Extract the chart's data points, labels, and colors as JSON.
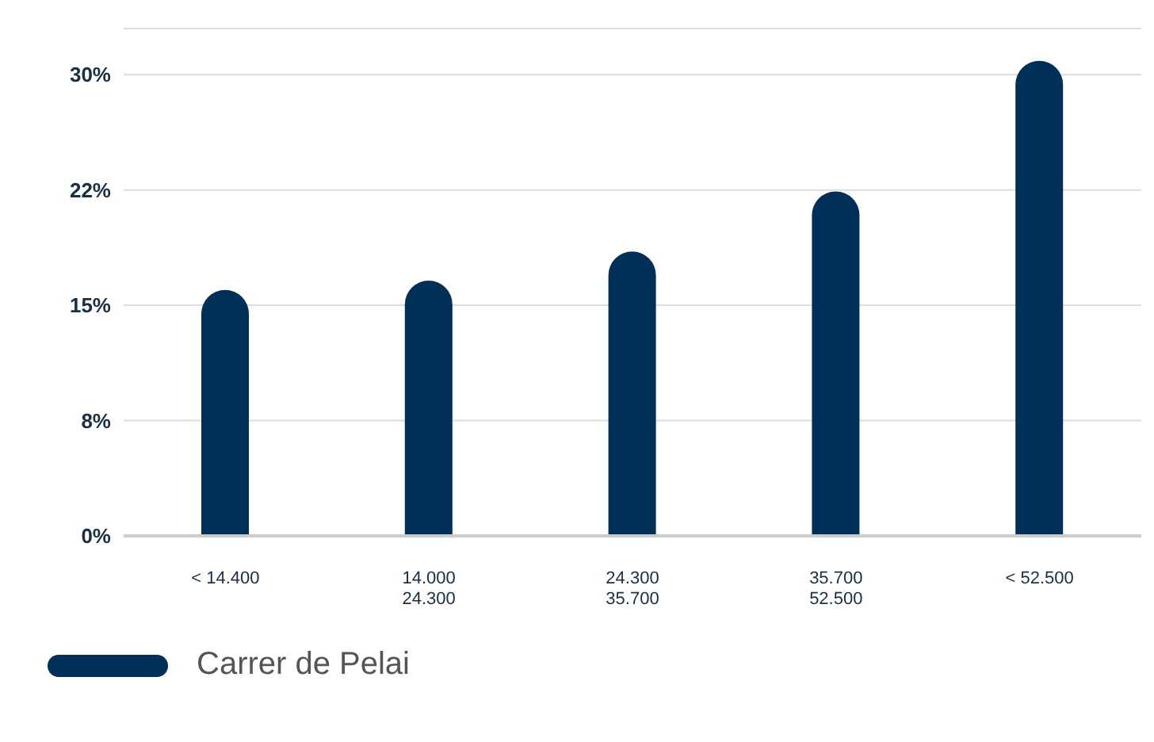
{
  "chart_data": {
    "type": "bar",
    "categories": [
      "< 14.400",
      "14.000\n24.300",
      "24.300\n35.700",
      "35.700\n52.500",
      "< 52.500"
    ],
    "series": [
      {
        "name": "Carrer de Pelai",
        "color": "#002f57",
        "values": [
          16.0,
          16.6,
          18.5,
          22.4,
          30.9
        ]
      }
    ],
    "ylim": [
      0,
      33
    ],
    "yticks": [
      {
        "value": 0,
        "label": "0%"
      },
      {
        "value": 7.5,
        "label": "8%"
      },
      {
        "value": 15,
        "label": "15%"
      },
      {
        "value": 22.5,
        "label": "22%"
      },
      {
        "value": 30,
        "label": "30%"
      }
    ],
    "grid": "y",
    "legend": "bottom left"
  }
}
